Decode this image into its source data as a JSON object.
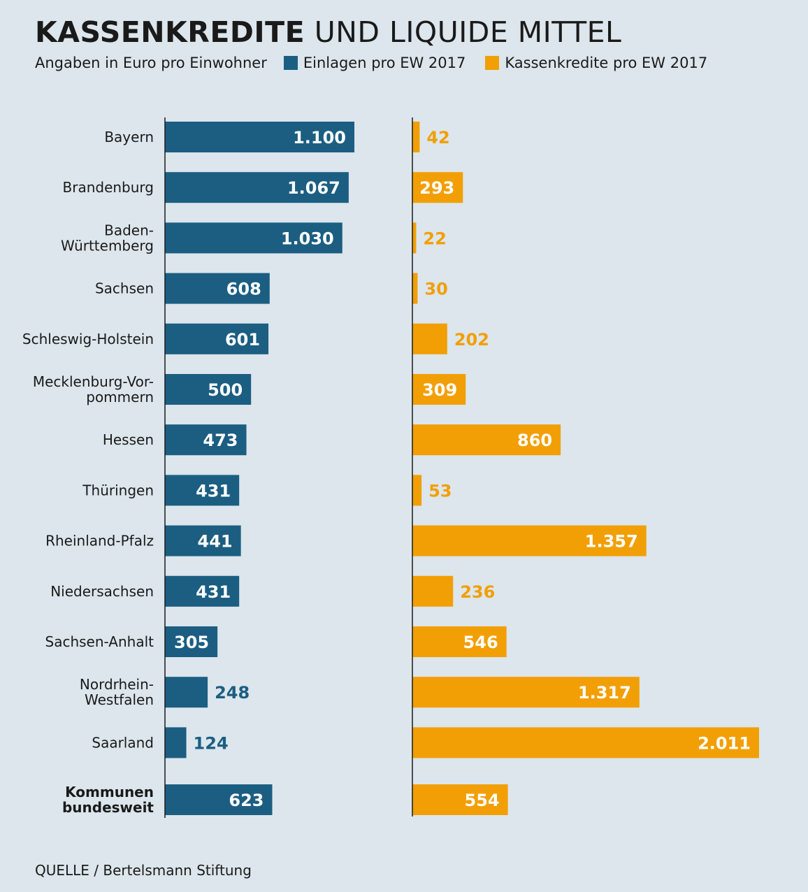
{
  "header": {
    "title_bold": "KASSENKREDITE",
    "title_light": "UND LIQUIDE MITTEL",
    "subtitle": "Angaben in Euro pro Einwohner"
  },
  "legend": [
    {
      "label": "Einlagen pro EW 2017",
      "color": "#1b5e82"
    },
    {
      "label": "Kassenkredite pro EW 2017",
      "color": "#f29f05"
    }
  ],
  "source": "QUELLE / Bertelsmann Stiftung",
  "chart_data": {
    "type": "bar",
    "orientation": "horizontal",
    "categories": [
      [
        "Bayern"
      ],
      [
        "Brandenburg"
      ],
      [
        "Baden-",
        "Württemberg"
      ],
      [
        "Sachsen"
      ],
      [
        "Schleswig-Holstein"
      ],
      [
        "Mecklenburg-Vor-",
        "pommern"
      ],
      [
        "Hessen"
      ],
      [
        "Thüringen"
      ],
      [
        "Rheinland-Pfalz"
      ],
      [
        "Niedersachsen"
      ],
      [
        "Sachsen-Anhalt"
      ],
      [
        "Nordrhein-",
        "Westfalen"
      ],
      [
        "Saarland"
      ],
      [
        "Kommunen",
        "bundesweit"
      ]
    ],
    "bold_categories": [
      13
    ],
    "series": [
      {
        "name": "Einlagen pro EW 2017",
        "color": "#1b5e82",
        "values": [
          1100,
          1067,
          1030,
          608,
          601,
          500,
          473,
          431,
          441,
          431,
          305,
          248,
          124,
          623
        ],
        "labels": [
          "1.100",
          "1.067",
          "1.030",
          "608",
          "601",
          "500",
          "473",
          "431",
          "441",
          "431",
          "305",
          "248",
          "124",
          "623"
        ]
      },
      {
        "name": "Kassenkredite pro EW 2017",
        "color": "#f29f05",
        "values": [
          42,
          293,
          22,
          30,
          202,
          309,
          860,
          53,
          1357,
          236,
          546,
          1317,
          2011,
          554
        ],
        "labels": [
          "42",
          "293",
          "22",
          "30",
          "202",
          "309",
          "860",
          "53",
          "1.357",
          "236",
          "546",
          "1.317",
          "2.011",
          "554"
        ]
      }
    ],
    "xlabel": "",
    "ylabel": ""
  }
}
